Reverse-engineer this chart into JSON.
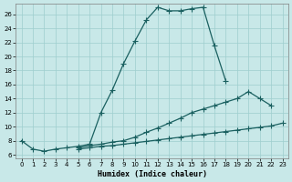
{
  "xlabel": "Humidex (Indice chaleur)",
  "bg_color": "#c8e8e8",
  "grid_color": "#9ecece",
  "line_color": "#1a6060",
  "xlim": [
    -0.5,
    23.5
  ],
  "ylim": [
    5.5,
    27.5
  ],
  "xticks": [
    0,
    1,
    2,
    3,
    4,
    5,
    6,
    7,
    8,
    9,
    10,
    11,
    12,
    13,
    14,
    15,
    16,
    17,
    18,
    19,
    20,
    21,
    22,
    23
  ],
  "yticks": [
    6,
    8,
    10,
    12,
    14,
    16,
    18,
    20,
    22,
    24,
    26
  ],
  "curve1_x": [
    0,
    1,
    2,
    3,
    4,
    5,
    6,
    7,
    8,
    9,
    10,
    11,
    12,
    13,
    14,
    15,
    16,
    17,
    18
  ],
  "curve1_y": [
    8.0,
    6.8,
    6.5,
    6.8,
    7.0,
    7.2,
    7.5,
    12.0,
    15.2,
    19.0,
    22.2,
    25.2,
    27.0,
    26.5,
    26.5,
    26.8,
    27.0,
    21.5,
    16.5
  ],
  "curve2_x": [
    5,
    6,
    7,
    8,
    9,
    10,
    11,
    12,
    13,
    14,
    15,
    16,
    17,
    18,
    19,
    20,
    21,
    22
  ],
  "curve2_y": [
    7.0,
    7.3,
    7.5,
    7.8,
    8.0,
    8.5,
    9.2,
    9.8,
    10.5,
    11.2,
    12.0,
    12.5,
    13.0,
    13.5,
    14.0,
    15.0,
    14.0,
    13.0
  ],
  "curve3_x": [
    5,
    6,
    7,
    8,
    9,
    10,
    11,
    12,
    13,
    14,
    15,
    16,
    17,
    18,
    19,
    20,
    21,
    22,
    23
  ],
  "curve3_y": [
    6.8,
    7.0,
    7.2,
    7.3,
    7.5,
    7.7,
    7.9,
    8.1,
    8.3,
    8.5,
    8.7,
    8.9,
    9.1,
    9.3,
    9.5,
    9.7,
    9.9,
    10.1,
    10.5
  ]
}
